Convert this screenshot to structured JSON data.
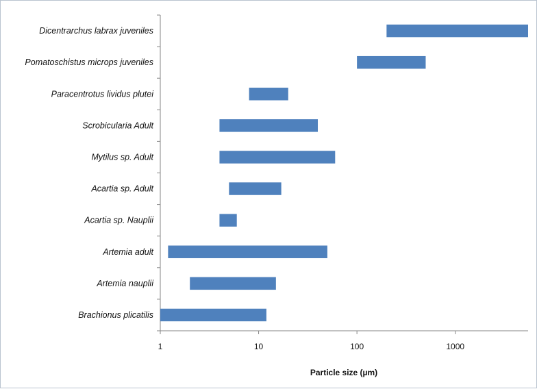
{
  "chart_data": {
    "type": "bar",
    "orientation": "horizontal",
    "bar_style": "floating-range",
    "x_scale": "log",
    "xlim": [
      1,
      5500
    ],
    "x_ticks": [
      1,
      10,
      100,
      1000
    ],
    "x_tick_labels": [
      "1",
      "10",
      "100",
      "1000"
    ],
    "xlabel": "Particle size (µm)",
    "ylabel": "",
    "title": "",
    "grid": false,
    "legend": "none",
    "bar_color": "#4f81bd",
    "categories": [
      "Brachionus plicatilis",
      "Artemia nauplii",
      "Artemia adult",
      "Acartia sp. Nauplii",
      "Acartia sp. Adult",
      "Mytilus sp. Adult",
      "Scrobicularia Adult",
      "Paracentrotus lividus plutei",
      "Pomatoschistus microps juveniles",
      "Dicentrarchus labrax juveniles"
    ],
    "ranges": [
      [
        1,
        12
      ],
      [
        2,
        15
      ],
      [
        1.2,
        50
      ],
      [
        4,
        6
      ],
      [
        5,
        17
      ],
      [
        4,
        60
      ],
      [
        4,
        40
      ],
      [
        8,
        20
      ],
      [
        100,
        500
      ],
      [
        200,
        5500
      ]
    ]
  }
}
